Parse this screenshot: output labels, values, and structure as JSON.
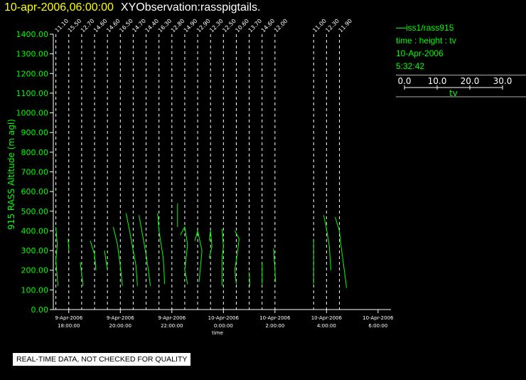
{
  "header": {
    "date_text": "10-apr-2006,06:00:00",
    "title_text": "XYObservation:rasspigtails."
  },
  "legend": {
    "series": "iss1/rass915",
    "fields": "time : height : tv",
    "date": "10-Apr-2006",
    "time": "5:32:42",
    "scale_ticks": [
      "0.0",
      "10.0",
      "20.0",
      "30.0"
    ],
    "scale_label": "tv"
  },
  "banner": "REAL-TIME DATA, NOT CHECKED FOR QUALITY",
  "colors": {
    "trace": "#00ff00",
    "title_date": "#ffff00",
    "axis": "#ffffff",
    "ylabel": "#00ff00"
  },
  "chart_data": {
    "type": "line",
    "xlabel": "time",
    "ylabel": "915 RASS Altitude (m agl)",
    "ylim": [
      0,
      1400
    ],
    "xlim_hours": [
      17.4,
      6.5
    ],
    "yticks": [
      "0.00",
      "100.00",
      "200.00",
      "300.00",
      "400.00",
      "500.00",
      "600.00",
      "700.00",
      "800.00",
      "900.00",
      "1000.00",
      "1100.00",
      "1200.00",
      "1300.00",
      "1400.00"
    ],
    "xticks": [
      {
        "hour": 18,
        "date": "9-Apr-2006",
        "time": "18:00:00"
      },
      {
        "hour": 20,
        "date": "9-Apr-2006",
        "time": "20:00:00"
      },
      {
        "hour": 22,
        "date": "9-Apr-2006",
        "time": "22:00:00"
      },
      {
        "hour": 24,
        "date": "10-Apr-2006",
        "time": "0:00:00"
      },
      {
        "hour": 26,
        "date": "10-Apr-2006",
        "time": "2:00:00"
      },
      {
        "hour": 28,
        "date": "10-Apr-2006",
        "time": "4:00:00"
      },
      {
        "hour": 30,
        "date": "10-Apr-2006",
        "time": "6:00:00"
      }
    ],
    "profiles": [
      {
        "hour": 17.5,
        "label": "11.10",
        "points": [
          [
            0.0,
            420
          ],
          [
            0.1,
            330
          ],
          [
            0.0,
            250
          ],
          [
            0.15,
            120
          ]
        ]
      },
      {
        "hour": 18.0,
        "label": "15.50",
        "points": [
          [
            -0.05,
            360
          ],
          [
            0.0,
            300
          ]
        ]
      },
      {
        "hour": 18.5,
        "label": "12.70",
        "points": [
          [
            -0.1,
            240
          ],
          [
            0.0,
            180
          ],
          [
            0.1,
            120
          ]
        ]
      },
      {
        "hour": 19.0,
        "label": "14.60",
        "points": [
          [
            -0.3,
            350
          ],
          [
            0.0,
            280
          ],
          [
            0.1,
            200
          ]
        ]
      },
      {
        "hour": 19.5,
        "label": "14.60",
        "points": [
          [
            -0.2,
            300
          ],
          [
            0.0,
            200
          ]
        ]
      },
      {
        "hour": 20.0,
        "label": "16.50",
        "points": [
          [
            -0.5,
            420
          ],
          [
            -0.2,
            330
          ],
          [
            0.0,
            220
          ],
          [
            0.15,
            120
          ]
        ]
      },
      {
        "hour": 20.5,
        "label": "14.70",
        "points": [
          [
            -0.5,
            490
          ],
          [
            -0.2,
            380
          ],
          [
            0.0,
            300
          ],
          [
            0.2,
            220
          ],
          [
            0.3,
            120
          ]
        ]
      },
      {
        "hour": 21.0,
        "label": "14.40",
        "points": [
          [
            -0.5,
            480
          ],
          [
            -0.2,
            360
          ],
          [
            0.0,
            280
          ],
          [
            0.2,
            180
          ],
          [
            0.3,
            120
          ]
        ]
      },
      {
        "hour": 21.5,
        "label": "16.30",
        "points": [
          [
            -0.1,
            490
          ],
          [
            0.0,
            400
          ],
          [
            0.3,
            260
          ],
          [
            0.4,
            130
          ]
        ]
      },
      {
        "hour": 22.0,
        "label": "12.80",
        "points": [
          [
            0.4,
            540
          ],
          [
            0.4,
            420
          ]
        ]
      },
      {
        "hour": 22.5,
        "label": "14.90",
        "points": [
          [
            -0.3,
            380
          ],
          [
            0.0,
            420
          ],
          [
            0.2,
            330
          ],
          [
            0.0,
            200
          ],
          [
            0.2,
            130
          ]
        ]
      },
      {
        "hour": 23.0,
        "label": "12.90",
        "points": [
          [
            -0.2,
            350
          ],
          [
            0.0,
            400
          ],
          [
            0.3,
            300
          ],
          [
            0.1,
            140
          ]
        ]
      },
      {
        "hour": 23.5,
        "label": "12.30",
        "points": [
          [
            -0.1,
            350
          ],
          [
            0.0,
            400
          ],
          [
            0.1,
            320
          ],
          [
            -0.1,
            260
          ]
        ]
      },
      {
        "hour": 24.0,
        "label": "12.50",
        "points": [
          [
            -0.1,
            410
          ],
          [
            0.0,
            320
          ],
          [
            -0.1,
            260
          ],
          [
            -0.1,
            120
          ]
        ]
      },
      {
        "hour": 24.5,
        "label": "10.60",
        "points": [
          [
            -0.1,
            400
          ],
          [
            0.2,
            360
          ],
          [
            0.1,
            300
          ],
          [
            -0.1,
            200
          ],
          [
            0.0,
            130
          ]
        ]
      },
      {
        "hour": 25.0,
        "label": "13.70",
        "points": [
          [
            0.0,
            190
          ],
          [
            0.05,
            120
          ]
        ]
      },
      {
        "hour": 25.5,
        "label": "14.60",
        "points": [
          [
            0.0,
            240
          ],
          [
            0.0,
            130
          ]
        ]
      },
      {
        "hour": 26.0,
        "label": "12.00",
        "points": [
          [
            -0.1,
            310
          ],
          [
            0.0,
            200
          ],
          [
            0.05,
            140
          ]
        ]
      },
      {
        "hour": 27.5,
        "label": "11.00",
        "points": [
          [
            0.0,
            360
          ],
          [
            0.0,
            130
          ]
        ]
      },
      {
        "hour": 28.0,
        "label": "12.30",
        "points": [
          [
            -0.2,
            480
          ],
          [
            0.0,
            410
          ],
          [
            0.2,
            320
          ],
          [
            0.3,
            200
          ]
        ]
      },
      {
        "hour": 28.5,
        "label": "11.90",
        "points": [
          [
            -0.3,
            470
          ],
          [
            0.0,
            400
          ],
          [
            0.1,
            330
          ],
          [
            0.4,
            170
          ],
          [
            0.5,
            110
          ]
        ]
      }
    ]
  }
}
